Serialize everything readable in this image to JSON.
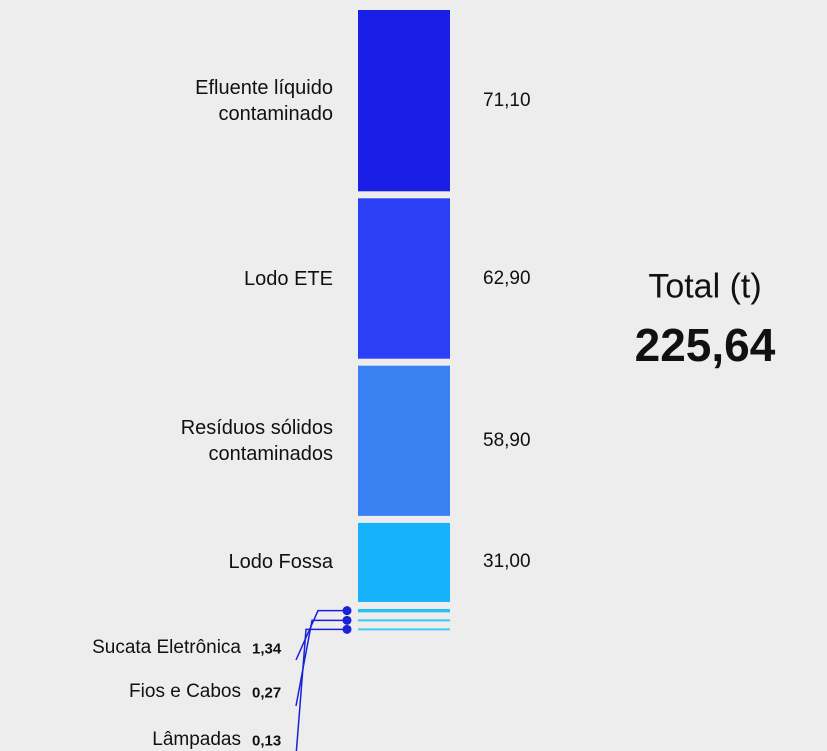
{
  "chart_data": {
    "type": "bar",
    "categories": [
      "Efluente líquido contaminado",
      "Lodo ETE",
      "Resíduos sólidos contaminados",
      "Lodo Fossa",
      "Sucata Eletrônica",
      "Fios e Cabos",
      "Lâmpadas"
    ],
    "values": [
      71.1,
      62.9,
      58.9,
      31.0,
      1.34,
      0.27,
      0.13
    ],
    "value_labels": [
      "71,10",
      "62,90",
      "58,90",
      "31,00",
      "1,34",
      "0,27",
      "0,13"
    ],
    "colors": [
      "#1a1ee6",
      "#2a3ff6",
      "#3a82f4",
      "#16b2fb",
      "#2cbff4",
      "#3ac6f2",
      "#44ccf2"
    ],
    "total": {
      "label": "Total (t)",
      "value": 225.64,
      "value_label": "225,64"
    }
  }
}
